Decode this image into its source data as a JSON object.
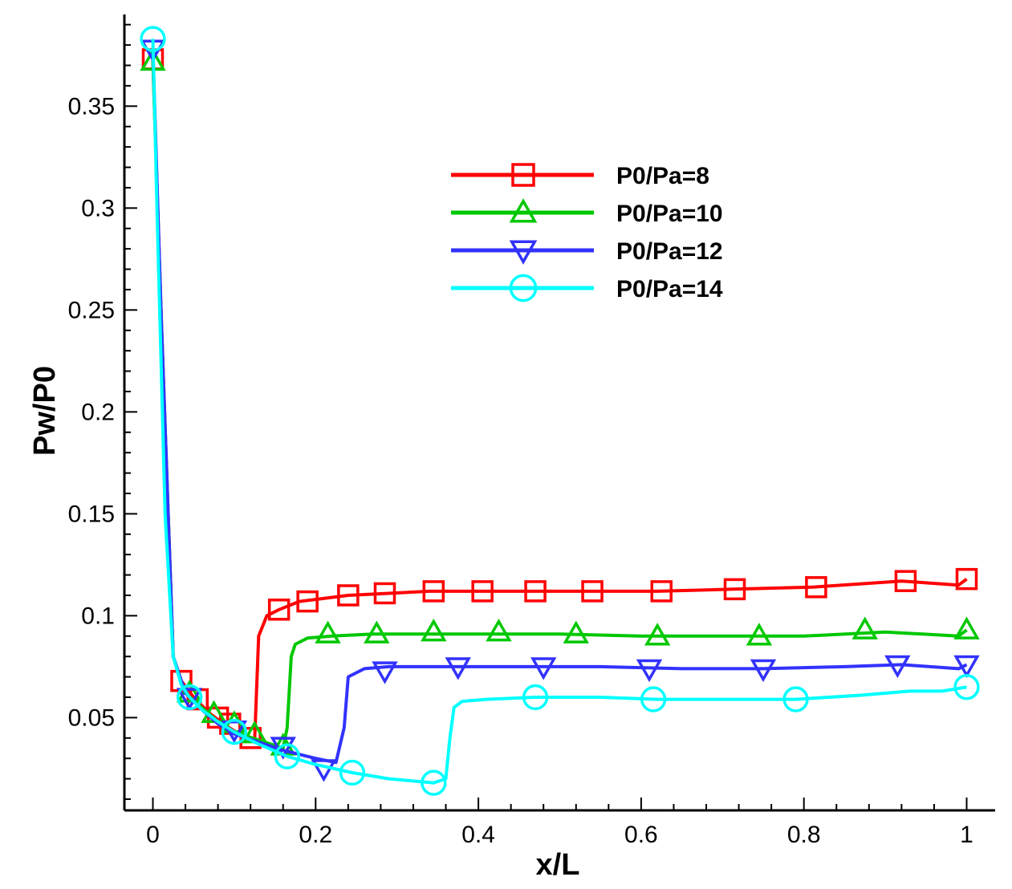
{
  "chart_data": {
    "type": "line",
    "title": "",
    "xlabel": "x/L",
    "ylabel": "Pw/P0",
    "xlim": [
      -0.035,
      1.035
    ],
    "ylim": [
      0.0045,
      0.395
    ],
    "xticks": [
      0,
      0.2,
      0.4,
      0.6,
      0.8,
      1
    ],
    "xtick_labels": [
      "0",
      "0.2",
      "0.4",
      "0.6",
      "0.8",
      "1"
    ],
    "yticks": [
      0.05,
      0.1,
      0.15,
      0.2,
      0.25,
      0.3,
      0.35
    ],
    "ytick_labels": [
      "0.05",
      "0.1",
      "0.15",
      "0.2",
      "0.25",
      "0.3",
      "0.35"
    ],
    "grid": false,
    "legend_position": "upper-center",
    "series": [
      {
        "name": "P0/Pa=8",
        "color": "#ff0000",
        "marker": "square",
        "x": [
          0,
          0.01,
          0.025,
          0.035,
          0.05,
          0.07,
          0.09,
          0.11,
          0.125,
          0.13,
          0.14,
          0.155,
          0.18,
          0.2,
          0.24,
          0.29,
          0.34,
          0.4,
          0.47,
          0.54,
          0.62,
          0.71,
          0.81,
          0.92,
          0.99,
          1
        ],
        "y": [
          0.373,
          0.25,
          0.08,
          0.068,
          0.06,
          0.052,
          0.046,
          0.041,
          0.038,
          0.09,
          0.1,
          0.103,
          0.107,
          0.108,
          0.11,
          0.111,
          0.112,
          0.112,
          0.112,
          0.112,
          0.112,
          0.113,
          0.114,
          0.117,
          0.115,
          0.118
        ],
        "markers_x": [
          0,
          0.035,
          0.055,
          0.08,
          0.095,
          0.12,
          0.155,
          0.19,
          0.24,
          0.285,
          0.345,
          0.405,
          0.47,
          0.54,
          0.625,
          0.715,
          0.815,
          0.925,
          1
        ],
        "markers_y": [
          0.373,
          0.068,
          0.059,
          0.05,
          0.047,
          0.04,
          0.103,
          0.107,
          0.11,
          0.111,
          0.112,
          0.112,
          0.112,
          0.112,
          0.112,
          0.113,
          0.114,
          0.117,
          0.118
        ]
      },
      {
        "name": "P0/Pa=10",
        "color": "#00c800",
        "marker": "triangle-up",
        "x": [
          0,
          0.01,
          0.025,
          0.04,
          0.06,
          0.08,
          0.1,
          0.13,
          0.16,
          0.165,
          0.17,
          0.175,
          0.19,
          0.22,
          0.27,
          0.33,
          0.4,
          0.5,
          0.6,
          0.7,
          0.8,
          0.9,
          0.99,
          1
        ],
        "y": [
          0.372,
          0.25,
          0.08,
          0.062,
          0.055,
          0.048,
          0.043,
          0.039,
          0.035,
          0.045,
          0.08,
          0.086,
          0.089,
          0.09,
          0.091,
          0.091,
          0.091,
          0.091,
          0.09,
          0.09,
          0.09,
          0.092,
          0.09,
          0.093
        ],
        "markers_x": [
          0,
          0.045,
          0.075,
          0.1,
          0.125,
          0.16,
          0.215,
          0.275,
          0.345,
          0.425,
          0.52,
          0.62,
          0.745,
          0.875,
          1
        ],
        "markers_y": [
          0.372,
          0.062,
          0.052,
          0.047,
          0.042,
          0.036,
          0.091,
          0.091,
          0.092,
          0.092,
          0.091,
          0.09,
          0.09,
          0.093,
          0.093
        ]
      },
      {
        "name": "P0/Pa=12",
        "color": "#3232ff",
        "marker": "triangle-down",
        "x": [
          0,
          0.01,
          0.025,
          0.04,
          0.06,
          0.08,
          0.1,
          0.13,
          0.16,
          0.2,
          0.225,
          0.235,
          0.24,
          0.26,
          0.29,
          0.35,
          0.45,
          0.55,
          0.65,
          0.75,
          0.85,
          0.92,
          0.99,
          1
        ],
        "y": [
          0.378,
          0.25,
          0.08,
          0.062,
          0.054,
          0.047,
          0.042,
          0.038,
          0.034,
          0.03,
          0.028,
          0.045,
          0.07,
          0.074,
          0.075,
          0.075,
          0.075,
          0.075,
          0.074,
          0.074,
          0.075,
          0.076,
          0.074,
          0.076
        ],
        "markers_x": [
          0,
          0.045,
          0.1,
          0.16,
          0.21,
          0.285,
          0.375,
          0.48,
          0.61,
          0.75,
          0.915,
          1
        ],
        "markers_y": [
          0.378,
          0.06,
          0.044,
          0.036,
          0.025,
          0.073,
          0.075,
          0.075,
          0.074,
          0.074,
          0.076,
          0.076
        ]
      },
      {
        "name": "P0/Pa=14",
        "color": "#00ffff",
        "marker": "circle",
        "x": [
          0,
          0.005,
          0.015,
          0.025,
          0.035,
          0.045,
          0.06,
          0.08,
          0.1,
          0.13,
          0.165,
          0.2,
          0.245,
          0.29,
          0.345,
          0.36,
          0.365,
          0.37,
          0.38,
          0.41,
          0.47,
          0.55,
          0.62,
          0.7,
          0.79,
          0.87,
          0.93,
          0.97,
          1
        ],
        "y": [
          0.383,
          0.3,
          0.15,
          0.08,
          0.066,
          0.06,
          0.054,
          0.048,
          0.043,
          0.037,
          0.031,
          0.027,
          0.023,
          0.02,
          0.018,
          0.02,
          0.04,
          0.055,
          0.058,
          0.059,
          0.06,
          0.06,
          0.059,
          0.059,
          0.059,
          0.061,
          0.063,
          0.063,
          0.065
        ],
        "markers_x": [
          0,
          0.045,
          0.1,
          0.165,
          0.245,
          0.345,
          0.47,
          0.615,
          0.79,
          1
        ],
        "markers_y": [
          0.383,
          0.06,
          0.043,
          0.031,
          0.023,
          0.018,
          0.06,
          0.059,
          0.059,
          0.065
        ]
      }
    ]
  }
}
